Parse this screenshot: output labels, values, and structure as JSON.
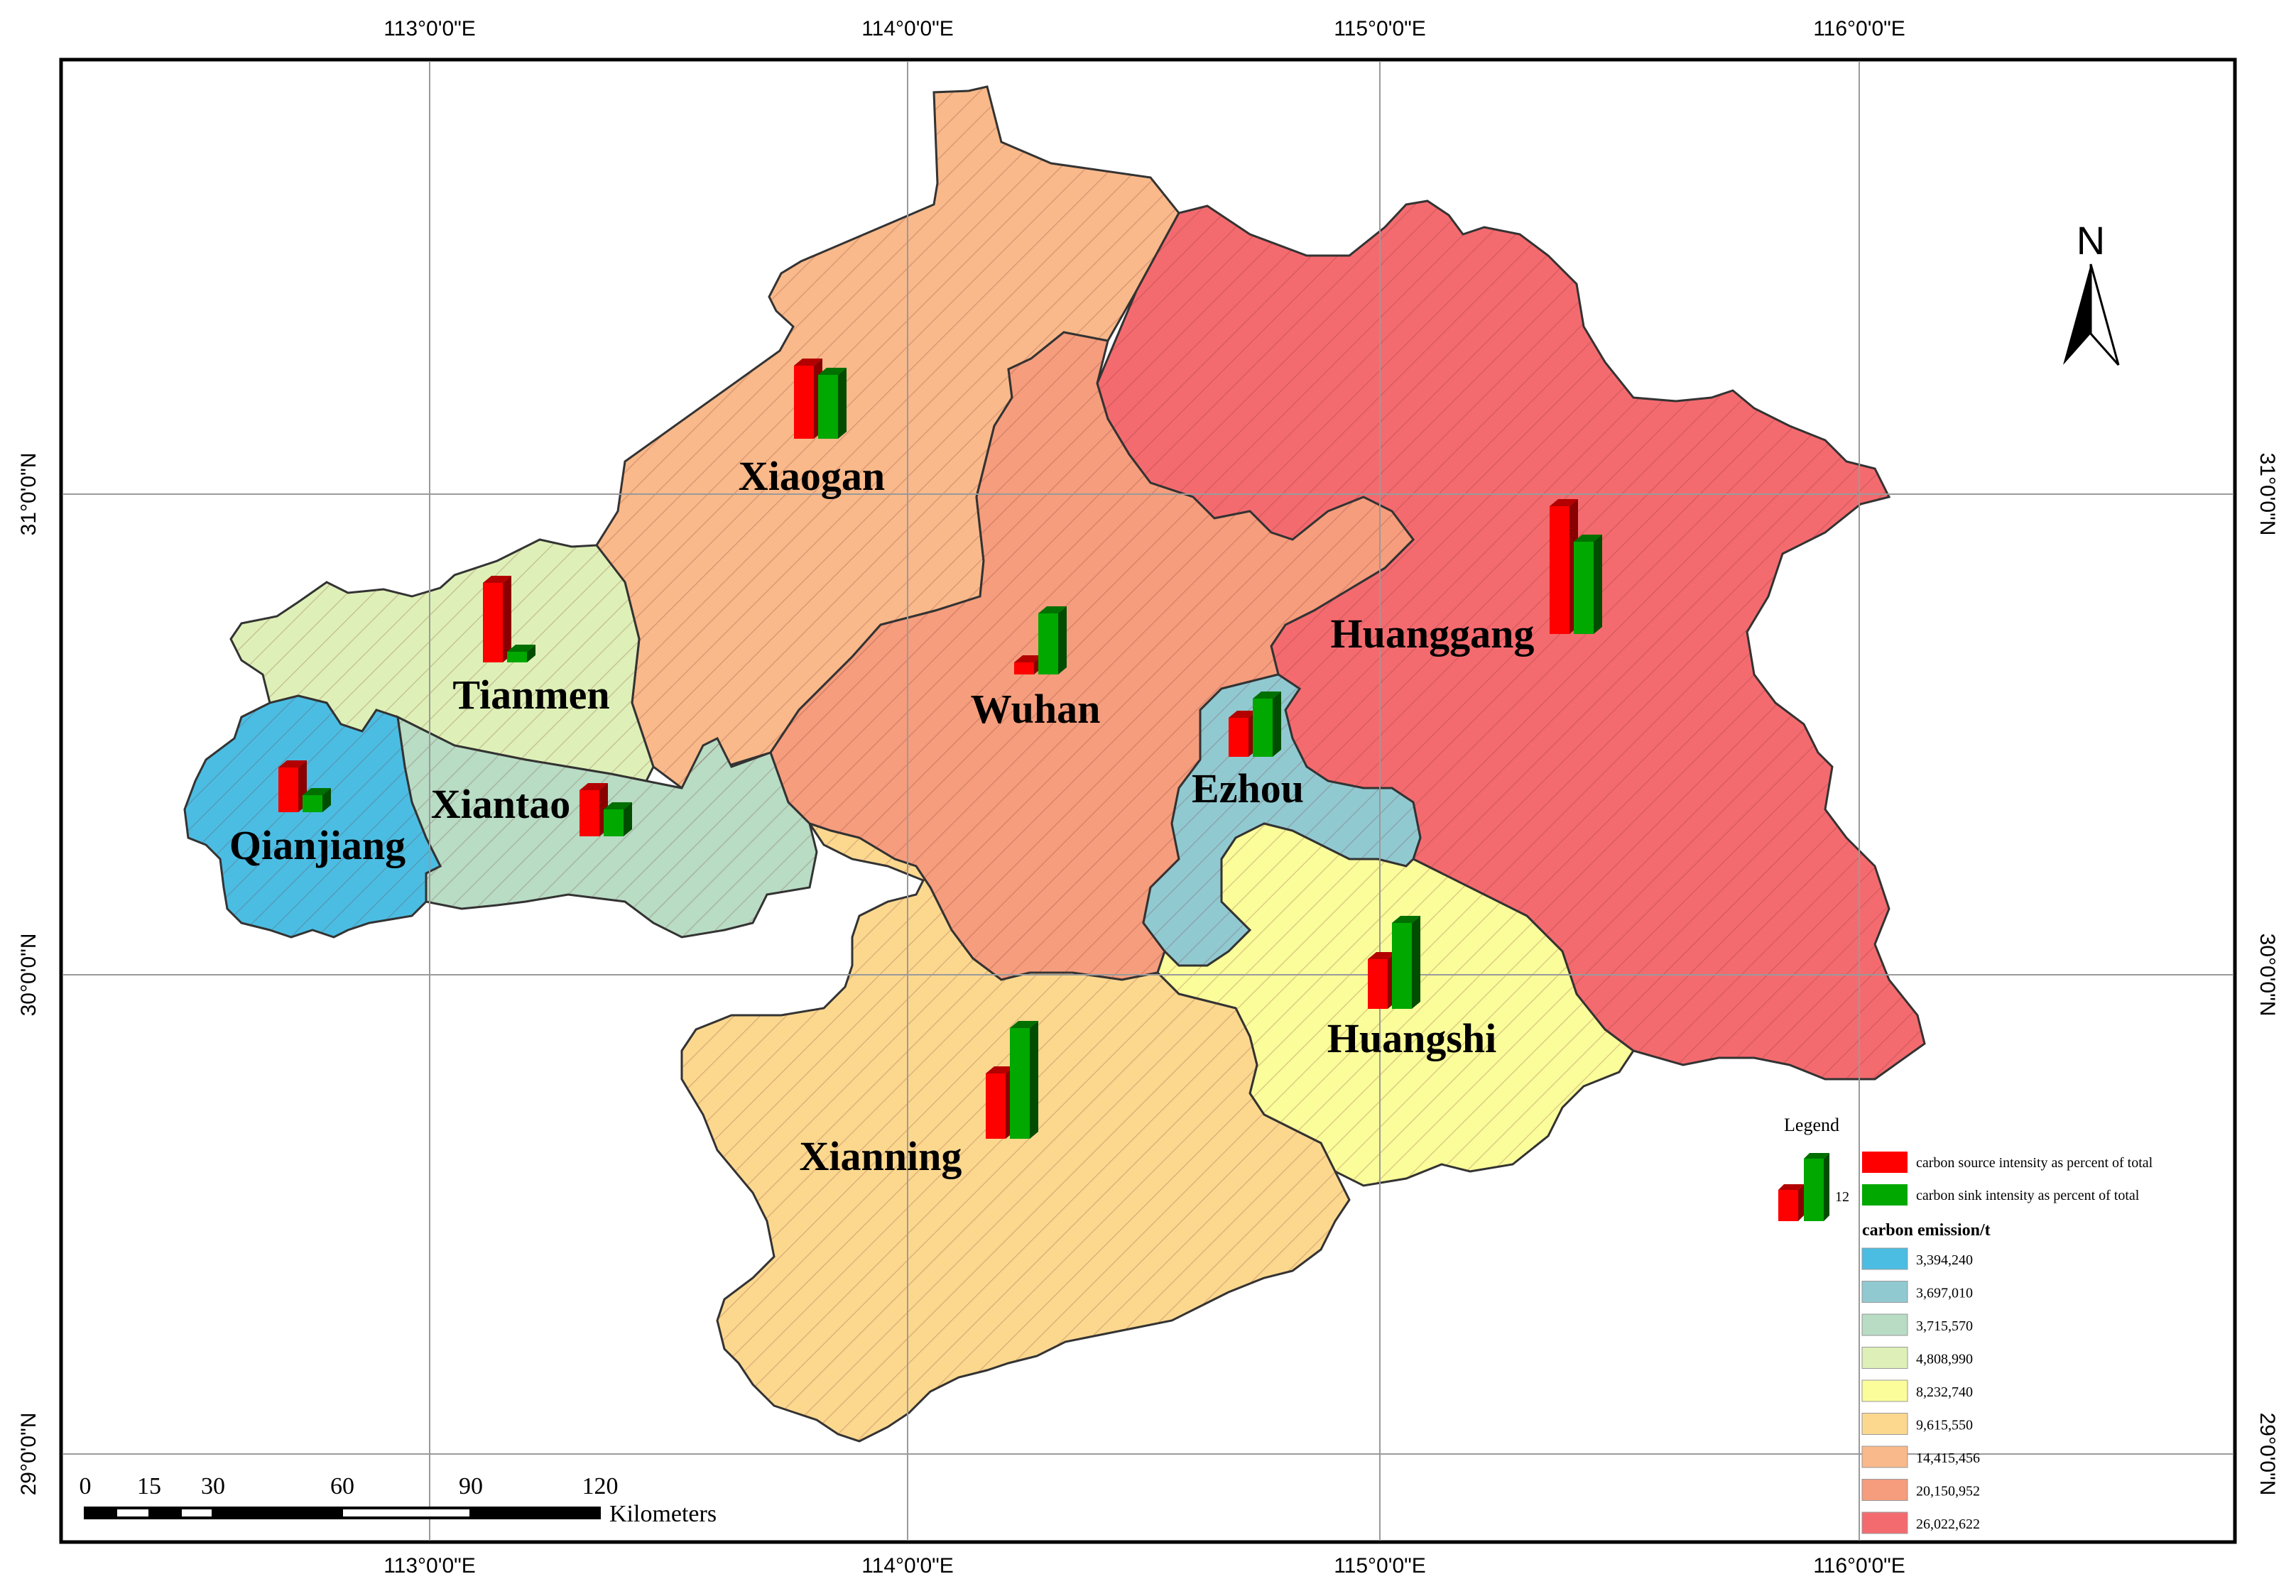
{
  "map": {
    "grid": {
      "lon_labels": [
        "113°0'0\"E",
        "114°0'0\"E",
        "115°0'0\"E",
        "116°0'0\"E"
      ],
      "lat_labels": [
        "31°0'0\"N",
        "30°0'0\"N",
        "29°0'0\"N"
      ]
    },
    "north_label": "N",
    "regions": [
      {
        "name": "Xiaogan",
        "fill": "#f9b98a"
      },
      {
        "name": "Huanggang",
        "fill": "#f46b6f"
      },
      {
        "name": "Wuhan",
        "fill": "#f59d7d"
      },
      {
        "name": "Tianmen",
        "fill": "#def0b7"
      },
      {
        "name": "Xiantao",
        "fill": "#b8dcc4"
      },
      {
        "name": "Qianjiang",
        "fill": "#4bbde3"
      },
      {
        "name": "Ezhou",
        "fill": "#91c9d1"
      },
      {
        "name": "Huangshi",
        "fill": "#fafd9a"
      },
      {
        "name": "Xianning",
        "fill": "#fcd88f"
      }
    ],
    "scale_bar": {
      "ticks": [
        "0",
        "15",
        "30",
        "60",
        "90",
        "120"
      ],
      "unit": "Kilometers"
    },
    "legend": {
      "title": "Legend",
      "sample_value": "12",
      "source_label": "carbon source intensity as percent of total",
      "sink_label": "carbon sink intensity as percent of total",
      "source_color": "#ff0000",
      "sink_color": "#00a800",
      "emission_title": "carbon emission/t",
      "classes": [
        {
          "value": "3,394,240",
          "color": "#4bbde3"
        },
        {
          "value": "3,697,010",
          "color": "#91c9d1"
        },
        {
          "value": "3,715,570",
          "color": "#b8dcc4"
        },
        {
          "value": "4,808,990",
          "color": "#def0b7"
        },
        {
          "value": "8,232,740",
          "color": "#fafd9a"
        },
        {
          "value": "9,615,550",
          "color": "#fcd88f"
        },
        {
          "value": "14,415,456",
          "color": "#f9b98a"
        },
        {
          "value": "20,150,952",
          "color": "#f59d7d"
        },
        {
          "value": "26,022,622",
          "color": "#f46b6f"
        }
      ]
    }
  }
}
